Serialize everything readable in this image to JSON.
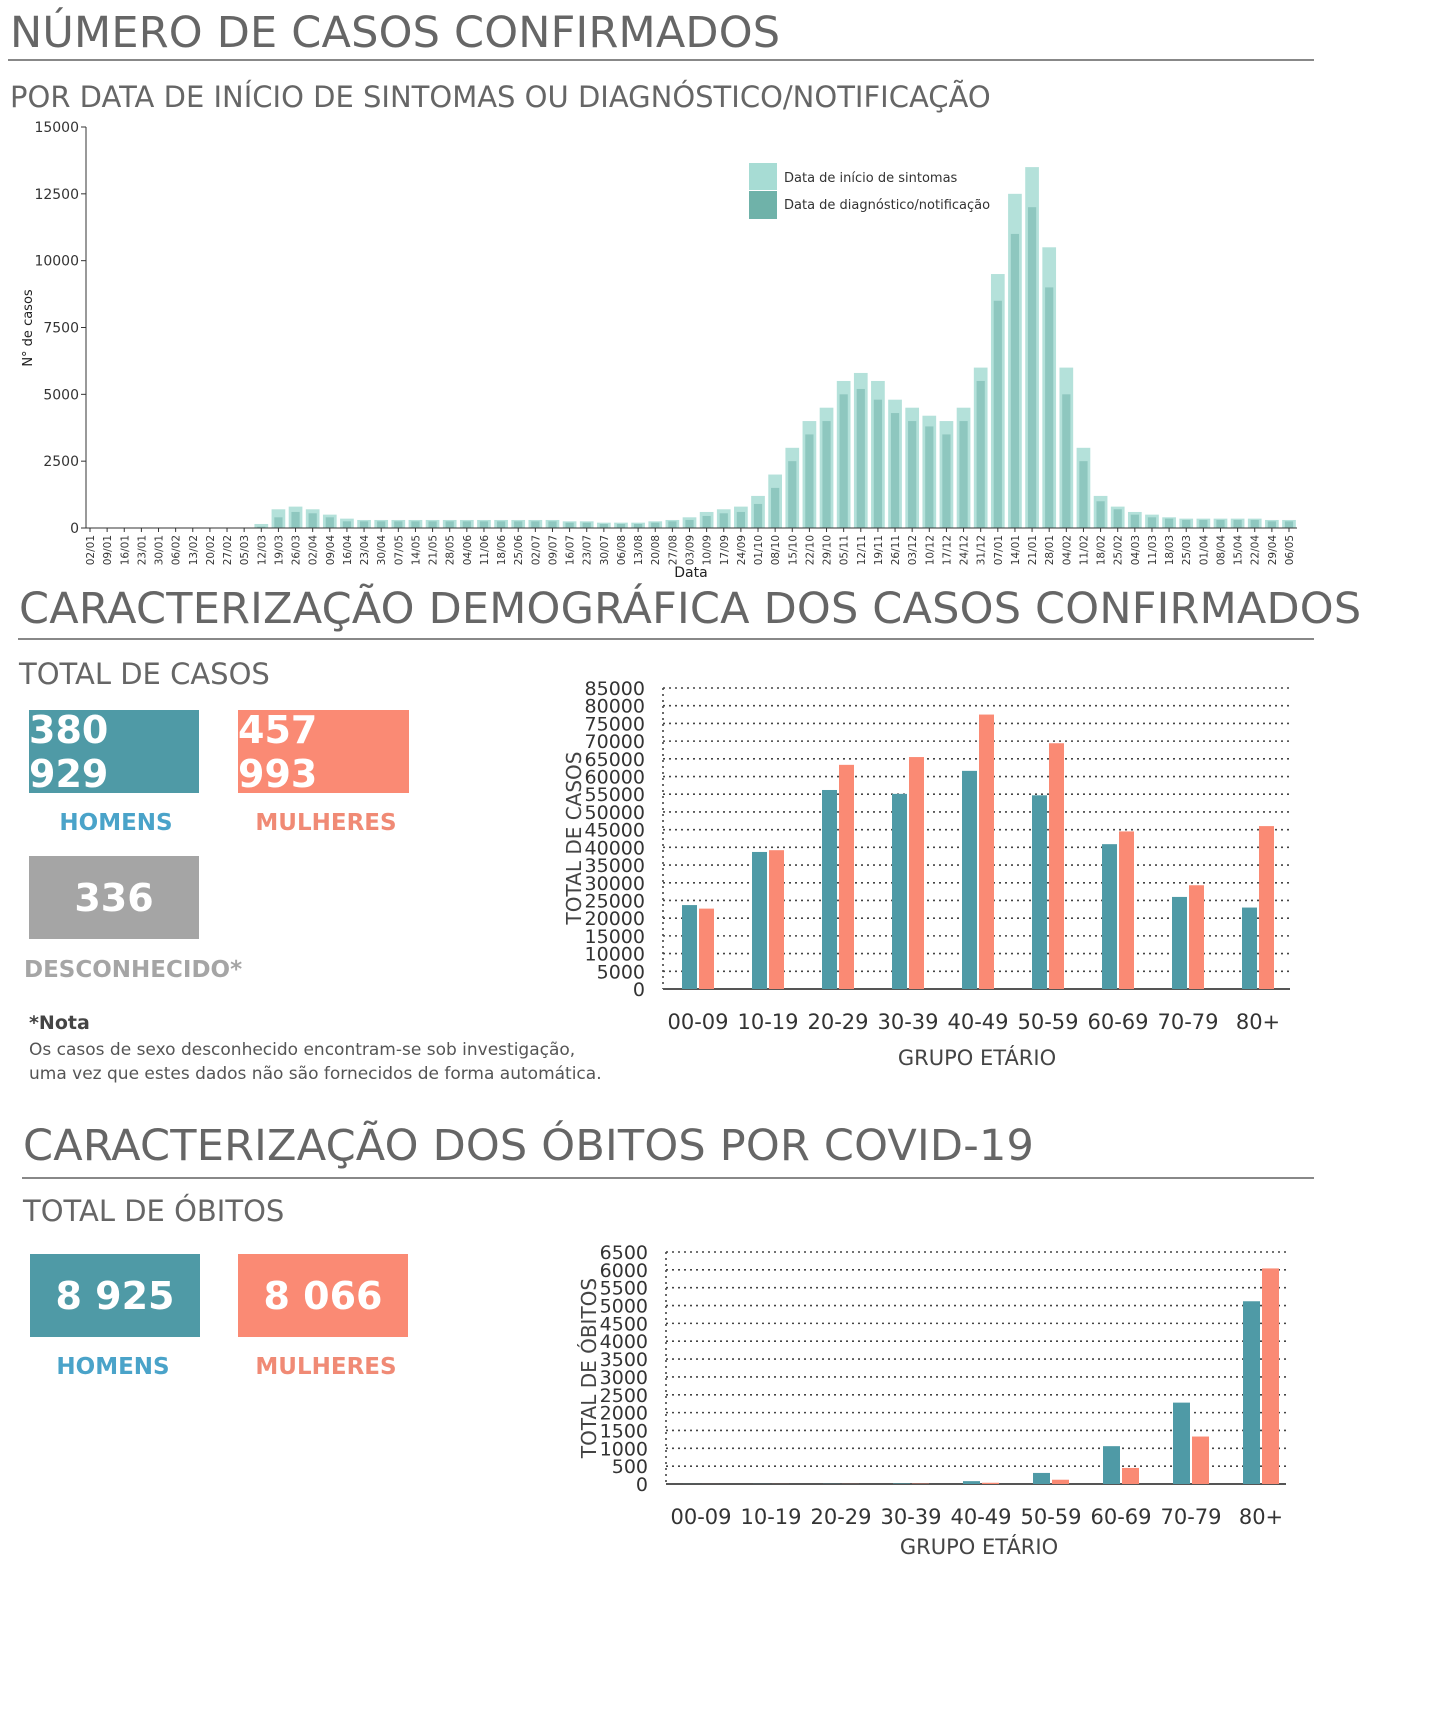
{
  "colors": {
    "men": "#4f9aa6",
    "women": "#fa8a74",
    "unknown": "#a5a5a5",
    "symptom_onset": "#a7dcd4",
    "diagnosis": "#6fb2a9",
    "men_label": "#4aa3c9",
    "women_label": "#f08a75",
    "unknown_label": "#a5a5a5"
  },
  "section1": {
    "title": "NÚMERO DE CASOS CONFIRMADOS",
    "subtitle": "POR DATA DE INÍCIO DE SINTOMAS OU DIAGNÓSTICO/NOTIFICAÇÃO"
  },
  "section2": {
    "title": "CARACTERIZAÇÃO DEMOGRÁFICA DOS CASOS CONFIRMADOS",
    "total_label": "TOTAL DE CASOS",
    "men_value": "380 929",
    "men_label": "HOMENS",
    "women_value": "457 993",
    "women_label": "MULHERES",
    "unknown_value": "336",
    "unknown_label": "DESCONHECIDO*",
    "note_title": "*Nota",
    "note_line1": "Os casos de sexo desconhecido encontram-se sob investigação,",
    "note_line2": "uma vez que estes dados não são fornecidos de forma automática."
  },
  "section3": {
    "title": "CARACTERIZAÇÃO DOS ÓBITOS POR COVID-19",
    "total_label": "TOTAL DE ÓBITOS",
    "men_value": "8 925",
    "men_label": "HOMENS",
    "women_value": "8 066",
    "women_label": "MULHERES"
  },
  "chart_data": [
    {
      "type": "bar",
      "ylabel": "N° de casos",
      "xlabel": "Data",
      "ylim": [
        0,
        15000
      ],
      "yticks": [
        0,
        2500,
        5000,
        7500,
        10000,
        12500,
        15000
      ],
      "legend_position": "top-right",
      "x": [
        "02/01",
        "09/01",
        "16/01",
        "23/01",
        "30/01",
        "06/02",
        "13/02",
        "20/02",
        "27/02",
        "05/03",
        "12/03",
        "19/03",
        "26/03",
        "02/04",
        "09/04",
        "16/04",
        "23/04",
        "30/04",
        "07/05",
        "14/05",
        "21/05",
        "28/05",
        "04/06",
        "11/06",
        "18/06",
        "25/06",
        "02/07",
        "09/07",
        "16/07",
        "23/07",
        "30/07",
        "06/08",
        "13/08",
        "20/08",
        "27/08",
        "03/09",
        "10/09",
        "17/09",
        "24/09",
        "01/10",
        "08/10",
        "15/10",
        "22/10",
        "29/10",
        "05/11",
        "12/11",
        "19/11",
        "26/11",
        "03/12",
        "10/12",
        "17/12",
        "24/12",
        "31/12",
        "07/01",
        "14/01",
        "21/01",
        "28/01",
        "04/02",
        "11/02",
        "18/02",
        "25/02",
        "04/03",
        "11/03",
        "18/03",
        "25/03",
        "01/04",
        "08/04",
        "15/04",
        "22/04",
        "29/04",
        "06/05"
      ],
      "series": [
        {
          "name": "Data de início de sintomas",
          "values": [
            0,
            0,
            0,
            0,
            0,
            0,
            0,
            0,
            0,
            0,
            150,
            700,
            800,
            700,
            500,
            350,
            300,
            300,
            300,
            300,
            300,
            300,
            300,
            300,
            300,
            300,
            300,
            300,
            250,
            250,
            200,
            200,
            200,
            250,
            300,
            400,
            600,
            700,
            800,
            1200,
            2000,
            3000,
            4000,
            4500,
            5500,
            5800,
            5500,
            4800,
            4500,
            4200,
            4000,
            4500,
            6000,
            9500,
            12500,
            13500,
            10500,
            6000,
            3000,
            1200,
            800,
            600,
            500,
            400,
            350,
            350,
            350,
            350,
            350,
            300,
            300
          ]
        },
        {
          "name": "Data de diagnóstico/notificação",
          "values": [
            0,
            0,
            0,
            0,
            0,
            0,
            0,
            0,
            0,
            0,
            50,
            400,
            600,
            550,
            400,
            250,
            250,
            250,
            250,
            250,
            250,
            250,
            250,
            250,
            250,
            250,
            250,
            250,
            200,
            200,
            150,
            150,
            150,
            200,
            250,
            300,
            450,
            550,
            600,
            900,
            1500,
            2500,
            3500,
            4000,
            5000,
            5200,
            4800,
            4300,
            4000,
            3800,
            3500,
            4000,
            5500,
            8500,
            11000,
            12000,
            9000,
            5000,
            2500,
            1000,
            700,
            500,
            400,
            350,
            300,
            300,
            300,
            300,
            300,
            250,
            250
          ]
        }
      ]
    },
    {
      "type": "bar",
      "ylabel": "TOTAL DE CASOS",
      "xlabel": "GRUPO ETÁRIO",
      "ylim": [
        0,
        85000
      ],
      "yticks": [
        0,
        5000,
        10000,
        15000,
        20000,
        25000,
        30000,
        35000,
        40000,
        45000,
        50000,
        55000,
        60000,
        65000,
        70000,
        75000,
        80000,
        85000
      ],
      "categories": [
        "00-09",
        "10-19",
        "20-29",
        "30-39",
        "40-49",
        "50-59",
        "60-69",
        "70-79",
        "80+"
      ],
      "grid": true,
      "series": [
        {
          "name": "HOMENS",
          "values": [
            23700,
            38700,
            56200,
            55100,
            61600,
            54700,
            40900,
            26000,
            23000
          ]
        },
        {
          "name": "MULHERES",
          "values": [
            22700,
            39200,
            63300,
            65500,
            77500,
            69400,
            44500,
            29300,
            46000
          ]
        }
      ]
    },
    {
      "type": "bar",
      "ylabel": "TOTAL DE ÓBITOS",
      "xlabel": "GRUPO ETÁRIO",
      "ylim": [
        0,
        6500
      ],
      "yticks": [
        0,
        500,
        1000,
        1500,
        2000,
        2500,
        3000,
        3500,
        4000,
        4500,
        5000,
        5500,
        6000,
        6500
      ],
      "categories": [
        "00-09",
        "10-19",
        "20-29",
        "30-39",
        "40-49",
        "50-59",
        "60-69",
        "70-79",
        "80+"
      ],
      "grid": true,
      "series": [
        {
          "name": "HOMENS",
          "values": [
            2,
            3,
            5,
            15,
            80,
            310,
            1060,
            2280,
            5120
          ]
        },
        {
          "name": "MULHERES",
          "values": [
            1,
            2,
            3,
            10,
            35,
            120,
            450,
            1330,
            6040
          ]
        }
      ]
    }
  ]
}
